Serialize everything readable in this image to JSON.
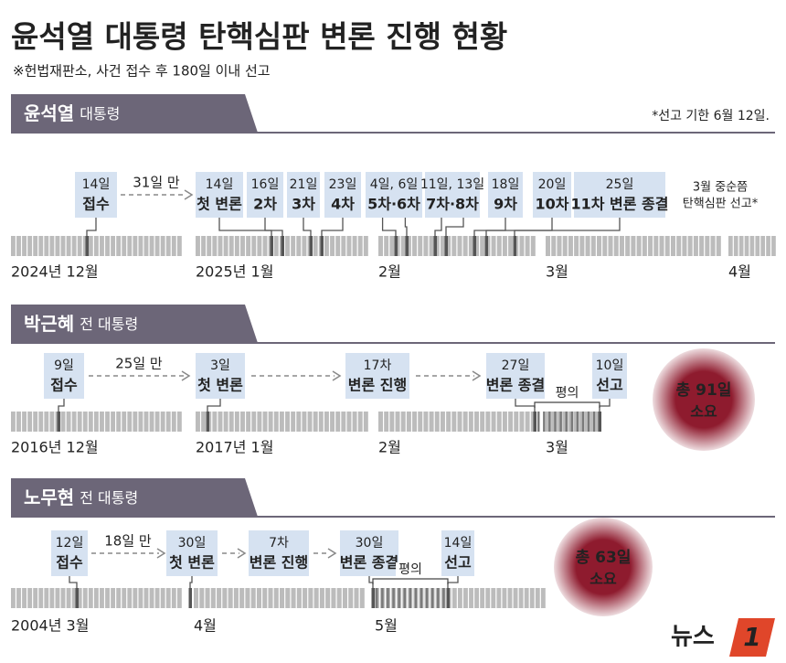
{
  "header": {
    "title": "윤석열 대통령 탄핵심판 변론 진행 현황",
    "subtitle": "※헌법재판소, 사건 접수 후 180일 이내 선고"
  },
  "sections": [
    {
      "name": "윤석열",
      "role": "대통령",
      "note": "*선고 기한 6월 12일.",
      "gap": "31일 만",
      "events": [
        {
          "date": "14일",
          "label": "접수"
        },
        {
          "date": "14일",
          "label": "첫 변론"
        },
        {
          "date": "16일",
          "label": "2차"
        },
        {
          "date": "21일",
          "label": "3차"
        },
        {
          "date": "23일",
          "label": "4차"
        },
        {
          "date": "4일, 6일",
          "label": "5차·6차"
        },
        {
          "date": "11일, 13일",
          "label": "7차·8차"
        },
        {
          "date": "18일",
          "label": "9차"
        },
        {
          "date": "20일",
          "label": "10차"
        },
        {
          "date": "25일",
          "label": "11차 변론 종결"
        }
      ],
      "months": [
        "2024년 12월",
        "2025년 1월",
        "2월",
        "3월",
        "4월"
      ],
      "forecast": [
        "3월 중순쯤",
        "탄핵심판 선고*"
      ]
    },
    {
      "name": "박근혜",
      "role": "전 대통령",
      "gap": "25일 만",
      "events": [
        {
          "date": "9일",
          "label": "접수"
        },
        {
          "date": "3일",
          "label": "첫 변론"
        },
        {
          "date": "17차",
          "label": "변론 진행"
        },
        {
          "date": "27일",
          "label": "변론 종결"
        },
        {
          "date": "10일",
          "label": "선고"
        }
      ],
      "deliberation": "평의",
      "months": [
        "2016년 12월",
        "2017년 1월",
        "2월",
        "3월"
      ],
      "total": [
        "총 91일",
        "소요"
      ]
    },
    {
      "name": "노무현",
      "role": "전 대통령",
      "gap": "18일 만",
      "events": [
        {
          "date": "12일",
          "label": "접수"
        },
        {
          "date": "30일",
          "label": "첫 변론"
        },
        {
          "date": "7차",
          "label": "변론 진행"
        },
        {
          "date": "30일",
          "label": "변론 종결"
        },
        {
          "date": "14일",
          "label": "선고"
        }
      ],
      "deliberation": "평의",
      "months": [
        "2004년 3월",
        "4월",
        "5월"
      ],
      "total": [
        "총 63일",
        "소요"
      ]
    }
  ],
  "logo": [
    "뉴스",
    "1"
  ]
}
